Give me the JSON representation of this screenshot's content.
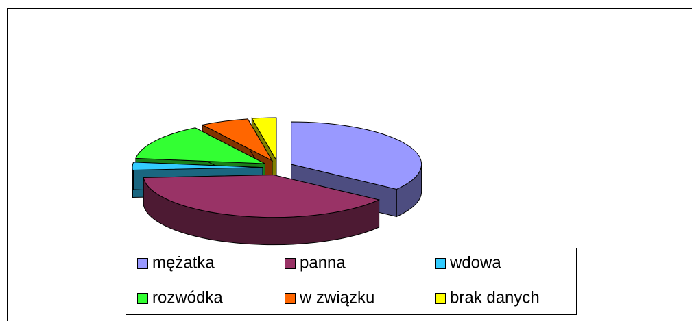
{
  "chart_data": {
    "type": "pie3d",
    "categories": [
      "mężatka",
      "panna",
      "wdowa",
      "rozwódka",
      "w związku",
      "brak danych"
    ],
    "values": [
      35,
      39,
      3,
      14,
      6,
      3
    ],
    "colors": [
      "#9999ff",
      "#993366",
      "#33ccff",
      "#33ff33",
      "#ff6600",
      "#ffff00"
    ],
    "legend": "bottom"
  }
}
